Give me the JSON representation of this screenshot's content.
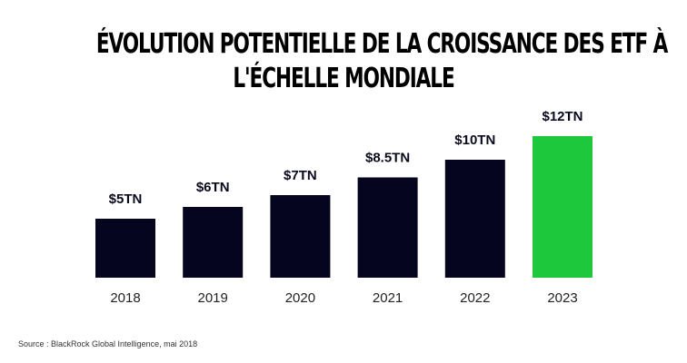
{
  "chart_data": {
    "type": "bar",
    "title_lines": [
      "ÉVOLUTION POTENTIELLE DE LA CROISSANCE DES ETF À",
      "L'ÉCHELLE MONDIALE"
    ],
    "categories": [
      "2018",
      "2019",
      "2020",
      "2021",
      "2022",
      "2023"
    ],
    "values": [
      5,
      6,
      7,
      8.5,
      10,
      12
    ],
    "data_labels": [
      "$5TN",
      "$6TN",
      "$7TN",
      "$8.5TN",
      "$10TN",
      "$12TN"
    ],
    "xlabel": "",
    "ylabel": "",
    "ylim": [
      0,
      12
    ],
    "grid": false,
    "legend": "none",
    "bar_color": "#05051f",
    "highlight_color": "#1ec83c",
    "highlight_index": 5
  },
  "source": "Source : BlackRock Global Intelligence, mai 2018"
}
